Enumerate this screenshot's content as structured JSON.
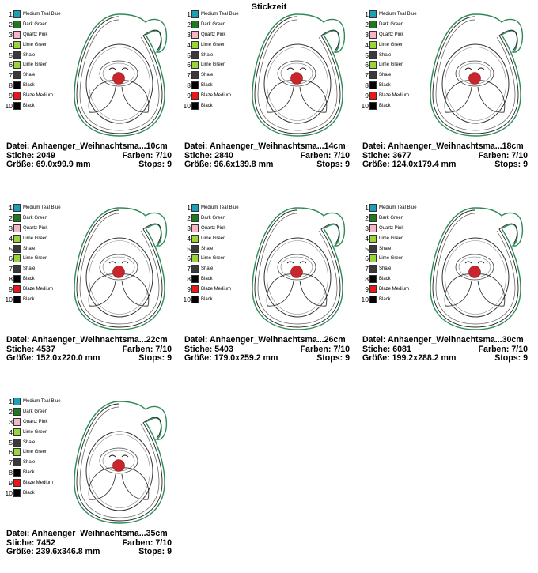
{
  "page_title": "Stickzeit",
  "colors": [
    {
      "num": "1",
      "name": "Medium Teal Blue",
      "hex": "#17a2b8"
    },
    {
      "num": "2",
      "name": "Dark Green",
      "hex": "#1f7a1f"
    },
    {
      "num": "3",
      "name": "Quartz Pink",
      "hex": "#f7b6c8"
    },
    {
      "num": "4",
      "name": "Lime Green",
      "hex": "#9bd43a"
    },
    {
      "num": "5",
      "name": "Shale",
      "hex": "#3a3a3a"
    },
    {
      "num": "6",
      "name": "Lime Green",
      "hex": "#9bd43a"
    },
    {
      "num": "7",
      "name": "Shale",
      "hex": "#3a3a3a"
    },
    {
      "num": "8",
      "name": "Black",
      "hex": "#000000"
    },
    {
      "num": "9",
      "name": "Blaze Medium",
      "hex": "#e81818"
    },
    {
      "num": "10",
      "name": "Black",
      "hex": "#000000"
    }
  ],
  "cards": [
    {
      "datei": "Datei: Anhaenger_Weihnachtsma...10cm",
      "stiche": "Stiche: 2049",
      "farben": "Farben: 7/10",
      "groesse": "Größe: 69.0x99.9 mm",
      "stops": "Stops: 9"
    },
    {
      "datei": "Datei: Anhaenger_Weihnachtsma...14cm",
      "stiche": "Stiche: 2840",
      "farben": "Farben: 7/10",
      "groesse": "Größe: 96.6x139.8 mm",
      "stops": "Stops: 9"
    },
    {
      "datei": "Datei: Anhaenger_Weihnachtsma...18cm",
      "stiche": "Stiche: 3677",
      "farben": "Farben: 7/10",
      "groesse": "Größe: 124.0x179.4 mm",
      "stops": "Stops: 9"
    },
    {
      "datei": "Datei: Anhaenger_Weihnachtsma...22cm",
      "stiche": "Stiche: 4537",
      "farben": "Farben: 7/10",
      "groesse": "Größe: 152.0x220.0 mm",
      "stops": "Stops: 9"
    },
    {
      "datei": "Datei: Anhaenger_Weihnachtsma...26cm",
      "stiche": "Stiche: 5403",
      "farben": "Farben: 7/10",
      "groesse": "Größe: 179.0x259.2 mm",
      "stops": "Stops: 9"
    },
    {
      "datei": "Datei: Anhaenger_Weihnachtsma...30cm",
      "stiche": "Stiche: 6081",
      "farben": "Farben: 7/10",
      "groesse": "Größe: 199.2x288.2 mm",
      "stops": "Stops: 9"
    },
    {
      "datei": "Datei: Anhaenger_Weihnachtsma...35cm",
      "stiche": "Stiche: 7452",
      "farben": "Farben: 7/10",
      "groesse": "Größe: 239.6x346.8 mm",
      "stops": "Stops: 9"
    }
  ]
}
